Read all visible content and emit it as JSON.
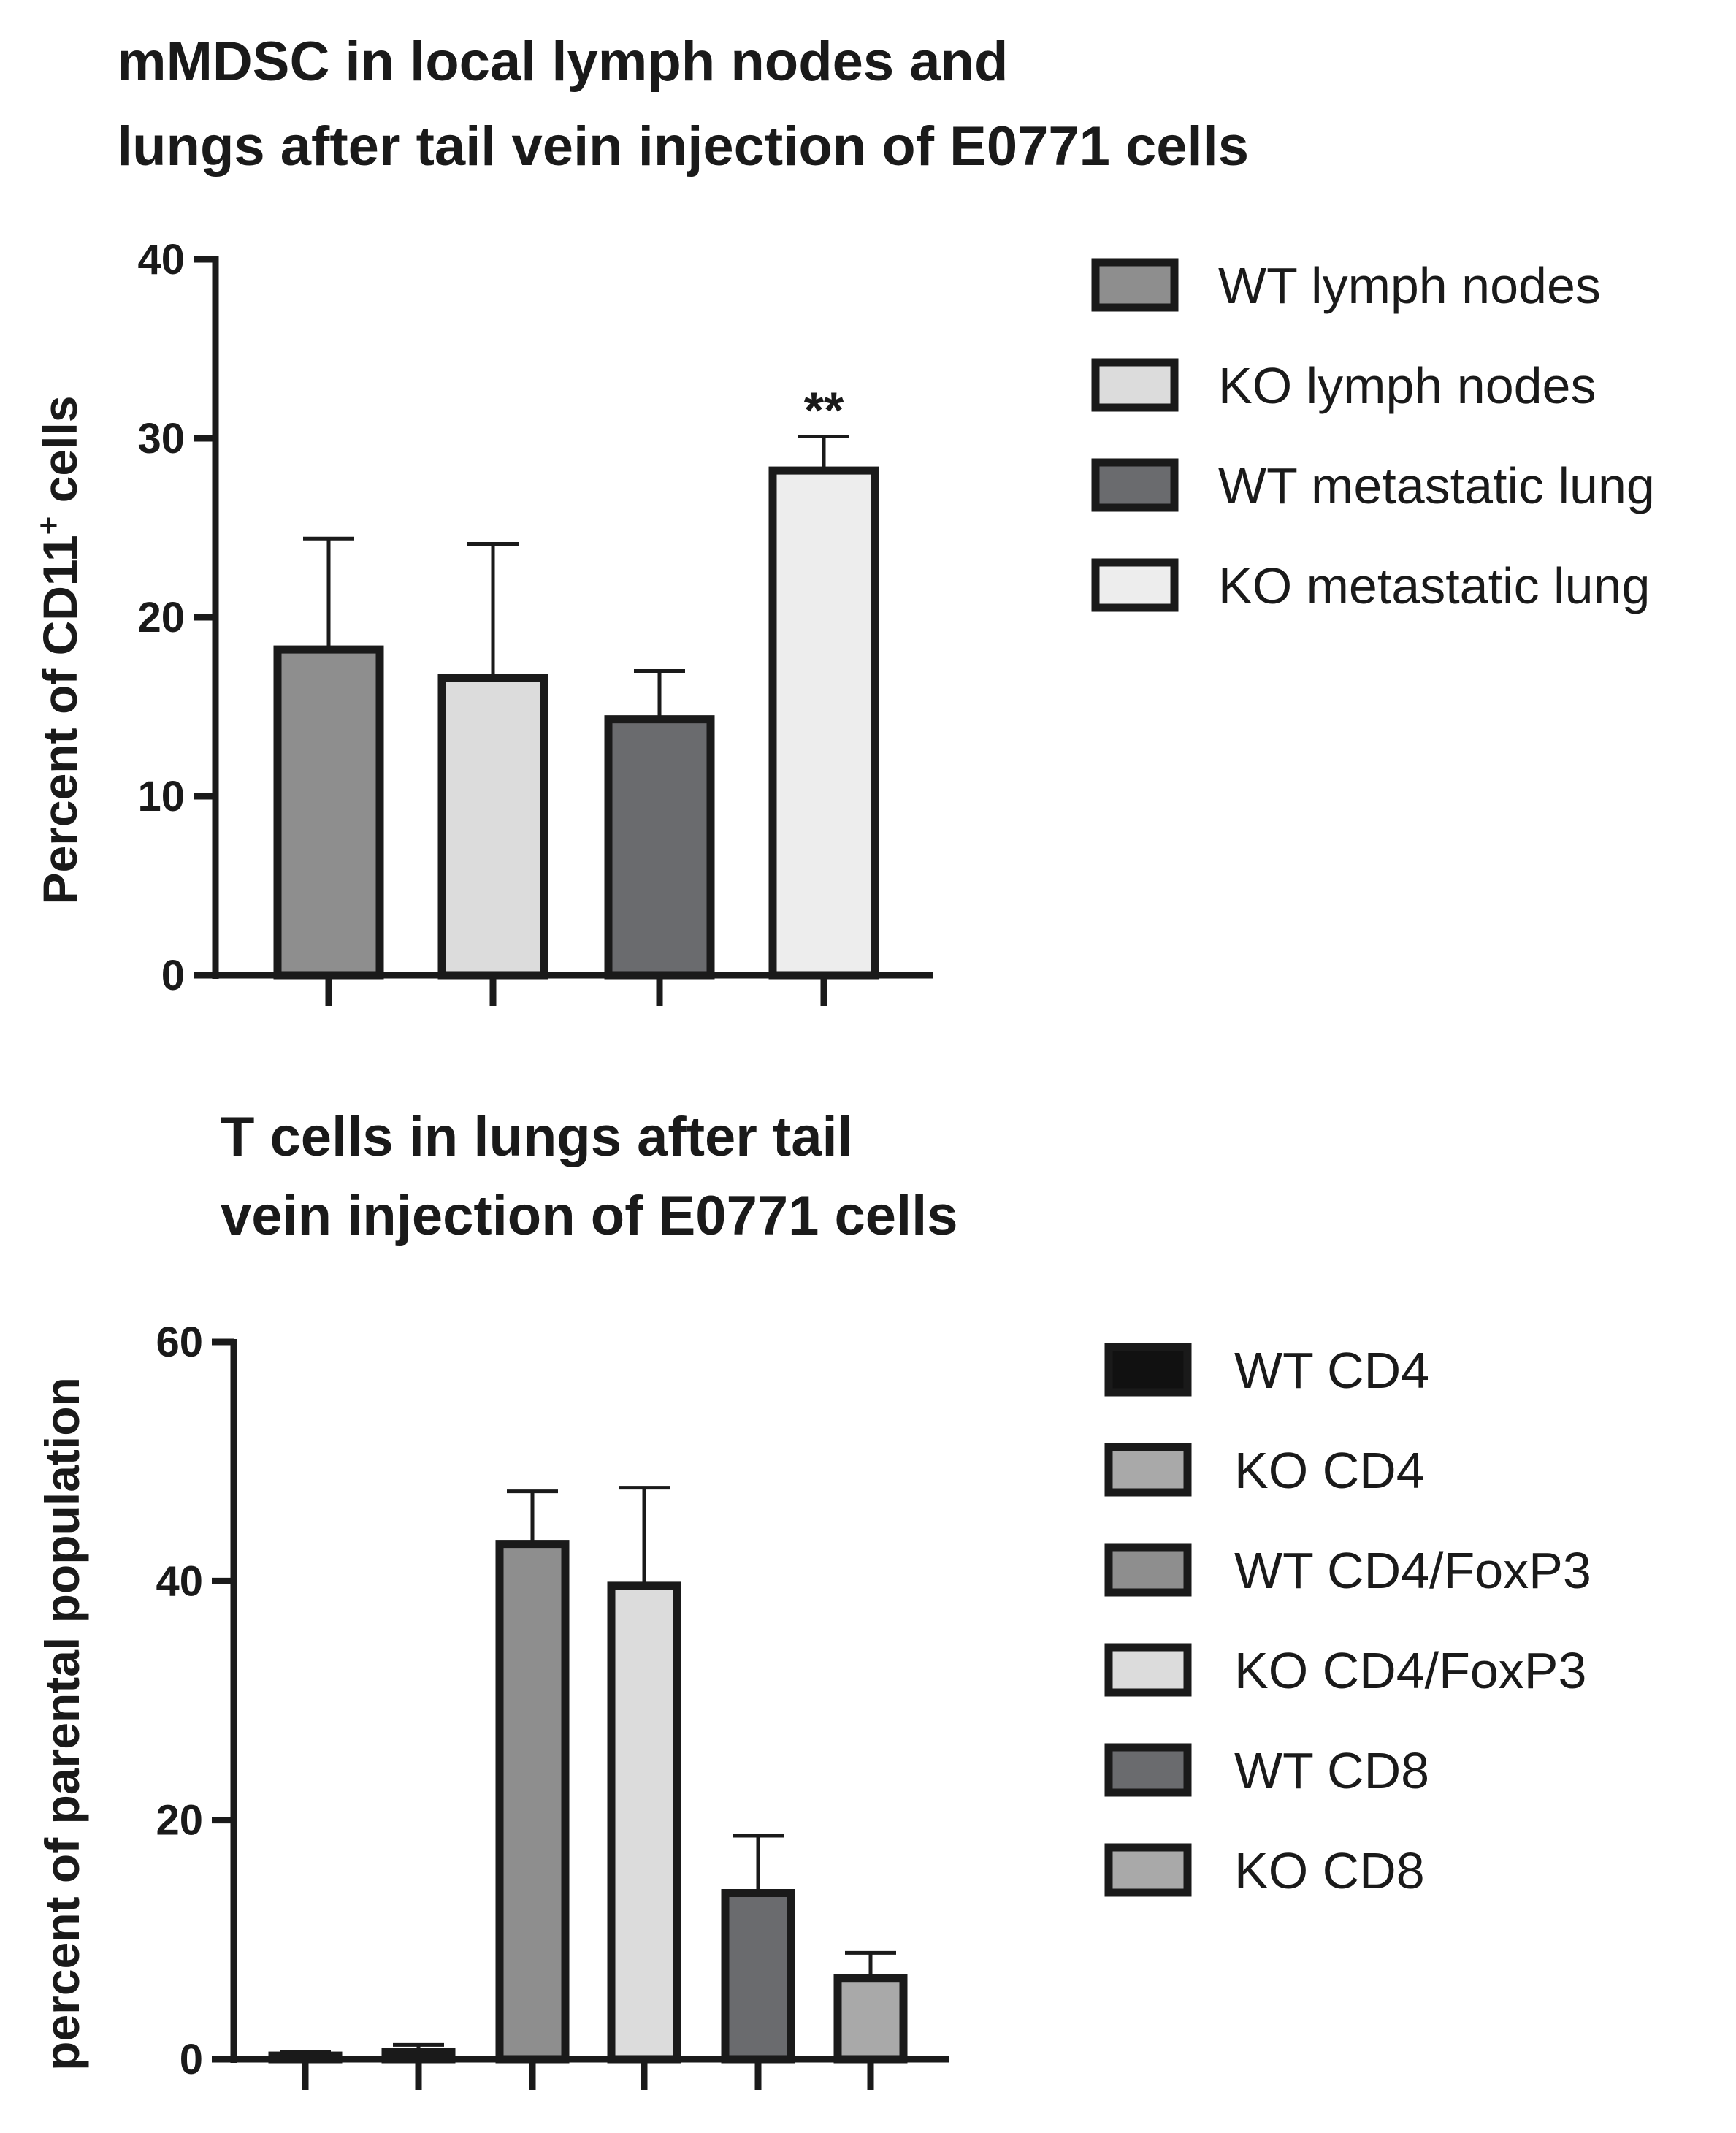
{
  "chart_data": [
    {
      "type": "bar",
      "title_lines": [
        "mMDSC in local lymph nodes and",
        "lungs after tail vein injection of E0771 cells"
      ],
      "xlabel": "",
      "ylabel": "Percent of CD11",
      "ylabel_superscript": "+",
      "ylabel_suffix": " cells",
      "ylim": [
        0,
        40
      ],
      "yticks": [
        "0",
        "10",
        "20",
        "30",
        "40"
      ],
      "categories": [
        "WT lymph nodes",
        "KO lymph nodes",
        "WT metastatic lung",
        "KO metastatic lung"
      ],
      "values": [
        18.2,
        16.6,
        14.3,
        28.2
      ],
      "errors": [
        6.2,
        7.5,
        2.7,
        1.9
      ],
      "colors": [
        "#8e8e8e",
        "#dcdcdc",
        "#6a6b6e",
        "#ededed"
      ],
      "annotations": [
        {
          "category": "KO metastatic lung",
          "text": "**"
        }
      ],
      "legend": "right"
    },
    {
      "type": "bar",
      "title_lines": [
        "T cells in lungs after tail",
        "vein injection of E0771 cells"
      ],
      "xlabel": "",
      "ylabel": "percent of parental population",
      "ylim": [
        0,
        60
      ],
      "yticks": [
        "0",
        "20",
        "40",
        "60"
      ],
      "categories": [
        "WT CD4",
        "KO CD4",
        "WT CD4/FoxP3",
        "KO CD4/FoxP3",
        "WT CD8",
        "KO CD8"
      ],
      "values": [
        0.3,
        0.6,
        43.1,
        39.6,
        13.9,
        6.8
      ],
      "errors": [
        0.3,
        0.6,
        4.4,
        8.2,
        4.8,
        2.1
      ],
      "colors": [
        "#111111",
        "#a9a9a9",
        "#8e8e8e",
        "#dcdcdc",
        "#6a6b6e",
        "#a9a9a9"
      ],
      "annotations": [],
      "legend": "right"
    }
  ]
}
